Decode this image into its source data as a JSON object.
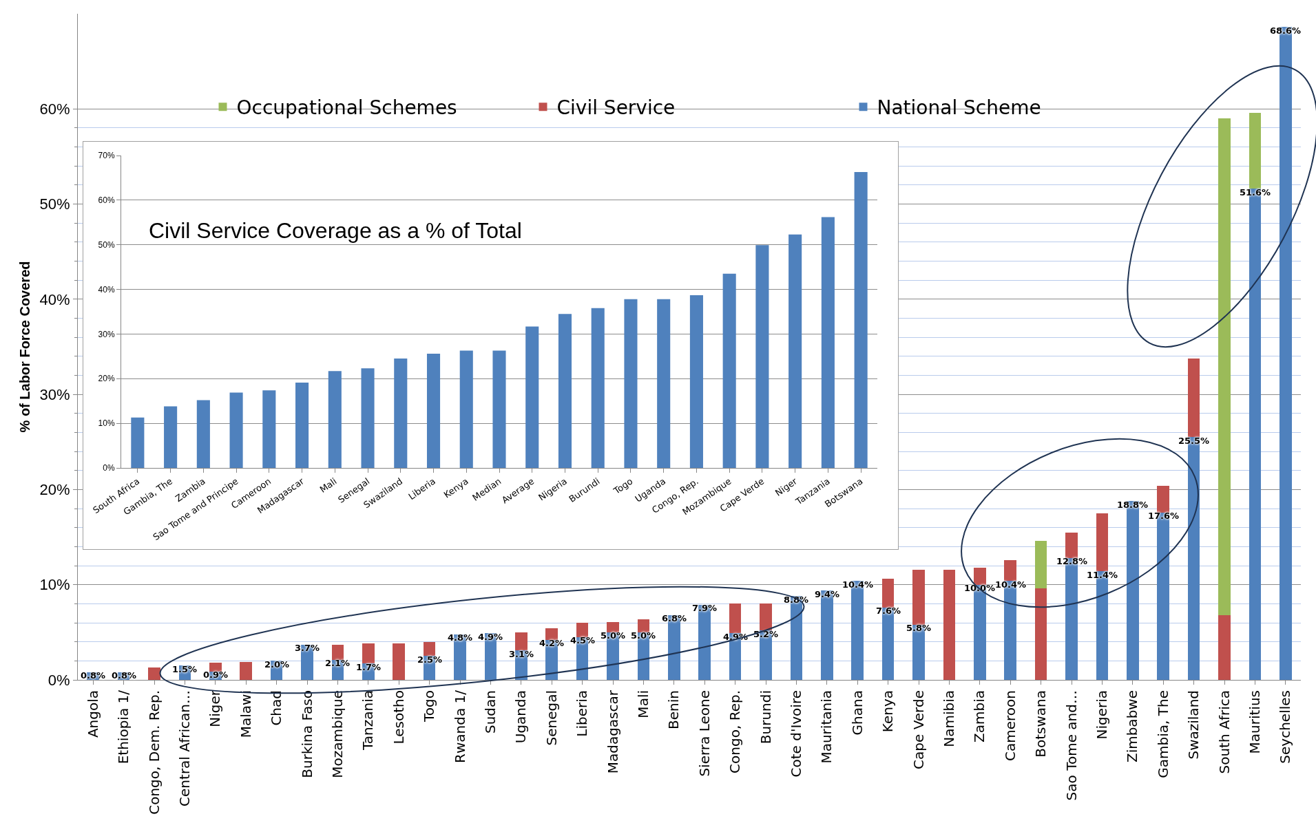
{
  "chart_data": [
    {
      "type": "bar",
      "stacked": true,
      "ylabel": "% of Labor Force Covered",
      "legend": "top",
      "grid": true,
      "categories": [
        "Angola",
        "Ethiopia 1/",
        "Congo, Dem. Rep.",
        "Central African…",
        "Niger",
        "Malawi",
        "Chad",
        "Burkina Faso",
        "Mozambique",
        "Tanzania",
        "Lesotho",
        "Togo",
        "Rwanda 1/",
        "Sudan",
        "Uganda",
        "Senegal",
        "Liberia",
        "Madagascar",
        "Mali",
        "Benin",
        "Sierra Leone",
        "Congo, Rep.",
        "Burundi",
        "Cote d'Ivoire",
        "Mauritania",
        "Ghana",
        "Kenya",
        "Cape Verde",
        "Namibia",
        "Zambia",
        "Cameroon",
        "Botswana",
        "Sao Tome and…",
        "Nigeria",
        "Zimbabwe",
        "Gambia, The",
        "Swaziland",
        "South Africa",
        "Mauritius",
        "Seychelles"
      ],
      "series": [
        {
          "name": "National Scheme",
          "color": "#4f81bd",
          "values": [
            0.8,
            0.8,
            null,
            1.5,
            0.9,
            null,
            2.0,
            3.7,
            2.1,
            1.7,
            null,
            2.5,
            4.8,
            4.9,
            3.1,
            4.2,
            4.5,
            5.0,
            5.0,
            6.8,
            7.9,
            4.9,
            5.2,
            8.8,
            9.4,
            10.4,
            7.6,
            5.8,
            null,
            10.0,
            10.4,
            null,
            12.8,
            11.4,
            18.8,
            17.6,
            25.5,
            null,
            51.6,
            68.6
          ],
          "value_labels": [
            "0.8%",
            "0.8%",
            null,
            "1.5%",
            "0.9%",
            null,
            "2.0%",
            "3.7%",
            "2.1%",
            "1.7%",
            null,
            "2.5%",
            "4.8%",
            "4.9%",
            "3.1%",
            "4.2%",
            "4.5%",
            "5.0%",
            "5.0%",
            "6.8%",
            "7.9%",
            "4.9%",
            "5.2%",
            "8.8%",
            "9.4%",
            "10.4%",
            "7.6%",
            "5.8%",
            null,
            "10.0%",
            "10.4%",
            null,
            "12.8%",
            "11.4%",
            "18.8%",
            "17.6%",
            "25.5%",
            null,
            "51.6%",
            "68.6%"
          ]
        },
        {
          "name": "Civil Service",
          "color": "#c0504d",
          "values": [
            null,
            null,
            1.3,
            null,
            0.9,
            1.9,
            null,
            null,
            1.6,
            2.1,
            3.8,
            1.5,
            null,
            null,
            1.9,
            1.2,
            1.5,
            1.1,
            1.4,
            null,
            null,
            3.1,
            2.8,
            null,
            null,
            null,
            3.0,
            5.8,
            11.6,
            1.8,
            2.2,
            9.6,
            2.7,
            6.1,
            null,
            2.8,
            8.3,
            6.8,
            null,
            null
          ]
        },
        {
          "name": "Occupational Schemes",
          "color": "#9bbb59",
          "values": [
            null,
            null,
            null,
            null,
            null,
            null,
            null,
            null,
            null,
            null,
            null,
            null,
            null,
            null,
            null,
            null,
            null,
            null,
            null,
            null,
            null,
            null,
            null,
            null,
            null,
            null,
            null,
            null,
            null,
            null,
            null,
            5.0,
            null,
            null,
            null,
            null,
            null,
            52.2,
            8.0,
            null
          ]
        }
      ],
      "ylim": [
        0,
        70
      ],
      "yticks": [
        {
          "value": 0,
          "label": "0%"
        },
        {
          "value": 2,
          "label": null
        },
        {
          "value": 4,
          "label": null
        },
        {
          "value": 6,
          "label": null
        },
        {
          "value": 8,
          "label": null
        },
        {
          "value": 10,
          "label": "10%"
        },
        {
          "value": 12,
          "label": null
        },
        {
          "value": 14,
          "label": null
        },
        {
          "value": 16,
          "label": null
        },
        {
          "value": 18,
          "label": null
        },
        {
          "value": 20,
          "label": "20%"
        },
        {
          "value": 22,
          "label": null
        },
        {
          "value": 24,
          "label": null
        },
        {
          "value": 26,
          "label": null
        },
        {
          "value": 28,
          "label": null
        },
        {
          "value": 30,
          "label": "30%"
        },
        {
          "value": 32,
          "label": null
        },
        {
          "value": 34,
          "label": null
        },
        {
          "value": 36,
          "label": null
        },
        {
          "value": 38,
          "label": null
        },
        {
          "value": 40,
          "label": "40%"
        },
        {
          "value": 42,
          "label": null
        },
        {
          "value": 44,
          "label": null
        },
        {
          "value": 46,
          "label": null
        },
        {
          "value": 48,
          "label": null
        },
        {
          "value": 50,
          "label": "50%"
        },
        {
          "value": 52,
          "label": null
        },
        {
          "value": 54,
          "label": null
        },
        {
          "value": 56,
          "label": null
        },
        {
          "value": 58,
          "label": null
        },
        {
          "value": 60,
          "label": "60%"
        }
      ]
    },
    {
      "type": "bar",
      "title": "Civil Service Coverage as a % of Total",
      "grid": "y",
      "categories": [
        "South Africa",
        "Gambia, The",
        "Zambia",
        "Sao Tome and Principe",
        "Cameroon",
        "Madagascar",
        "Mali",
        "Senegal",
        "Swaziland",
        "Liberia",
        "Kenya",
        "Median",
        "Average",
        "Nigeria",
        "Burundi",
        "Togo",
        "Uganda",
        "Congo, Rep.",
        "Mozambique",
        "Cape Verde",
        "Niger",
        "Tanzania",
        "Botswana"
      ],
      "series": [
        {
          "color": "#4f81bd",
          "values": [
            11.3,
            13.8,
            15.2,
            16.9,
            17.4,
            19.1,
            21.7,
            22.3,
            24.5,
            25.6,
            26.3,
            26.3,
            31.7,
            34.5,
            35.8,
            37.8,
            37.8,
            38.7,
            43.5,
            49.9,
            52.3,
            56.2,
            66.3
          ]
        }
      ],
      "ylim": [
        0,
        70
      ],
      "yticks": [
        {
          "value": 0,
          "label": "0%"
        },
        {
          "value": 10,
          "label": "10%"
        },
        {
          "value": 20,
          "label": "20%"
        },
        {
          "value": 30,
          "label": "30%"
        },
        {
          "value": 40,
          "label": "40%"
        },
        {
          "value": 50,
          "label": "50%"
        },
        {
          "value": 60,
          "label": "60%"
        },
        {
          "value": 70,
          "label": "70%"
        }
      ]
    }
  ]
}
